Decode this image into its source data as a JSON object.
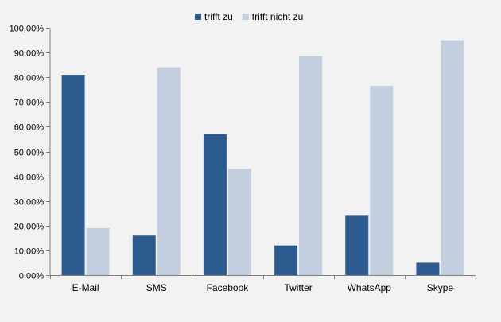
{
  "chart_data": {
    "type": "bar",
    "categories": [
      "E-Mail",
      "SMS",
      "Facebook",
      "Twitter",
      "WhatsApp",
      "Skype"
    ],
    "series": [
      {
        "name": "trifft zu",
        "color": "#2b5b8f",
        "values": [
          81,
          16,
          57,
          12,
          24,
          5
        ]
      },
      {
        "name": "trifft nicht zu",
        "color": "#c3cfde",
        "values": [
          19,
          84,
          43,
          88.5,
          76.5,
          95
        ]
      }
    ],
    "ylim": [
      0,
      100
    ],
    "yticks": [
      0,
      10,
      20,
      30,
      40,
      50,
      60,
      70,
      80,
      90,
      100
    ],
    "ytick_labels": [
      "0,00%",
      "10,00%",
      "20,00%",
      "30,00%",
      "40,00%",
      "50,00%",
      "60,00%",
      "70,00%",
      "80,00%",
      "90,00%",
      "100,00%"
    ],
    "legend_position": "top-center",
    "grid": false,
    "axis_color": "#808080"
  }
}
